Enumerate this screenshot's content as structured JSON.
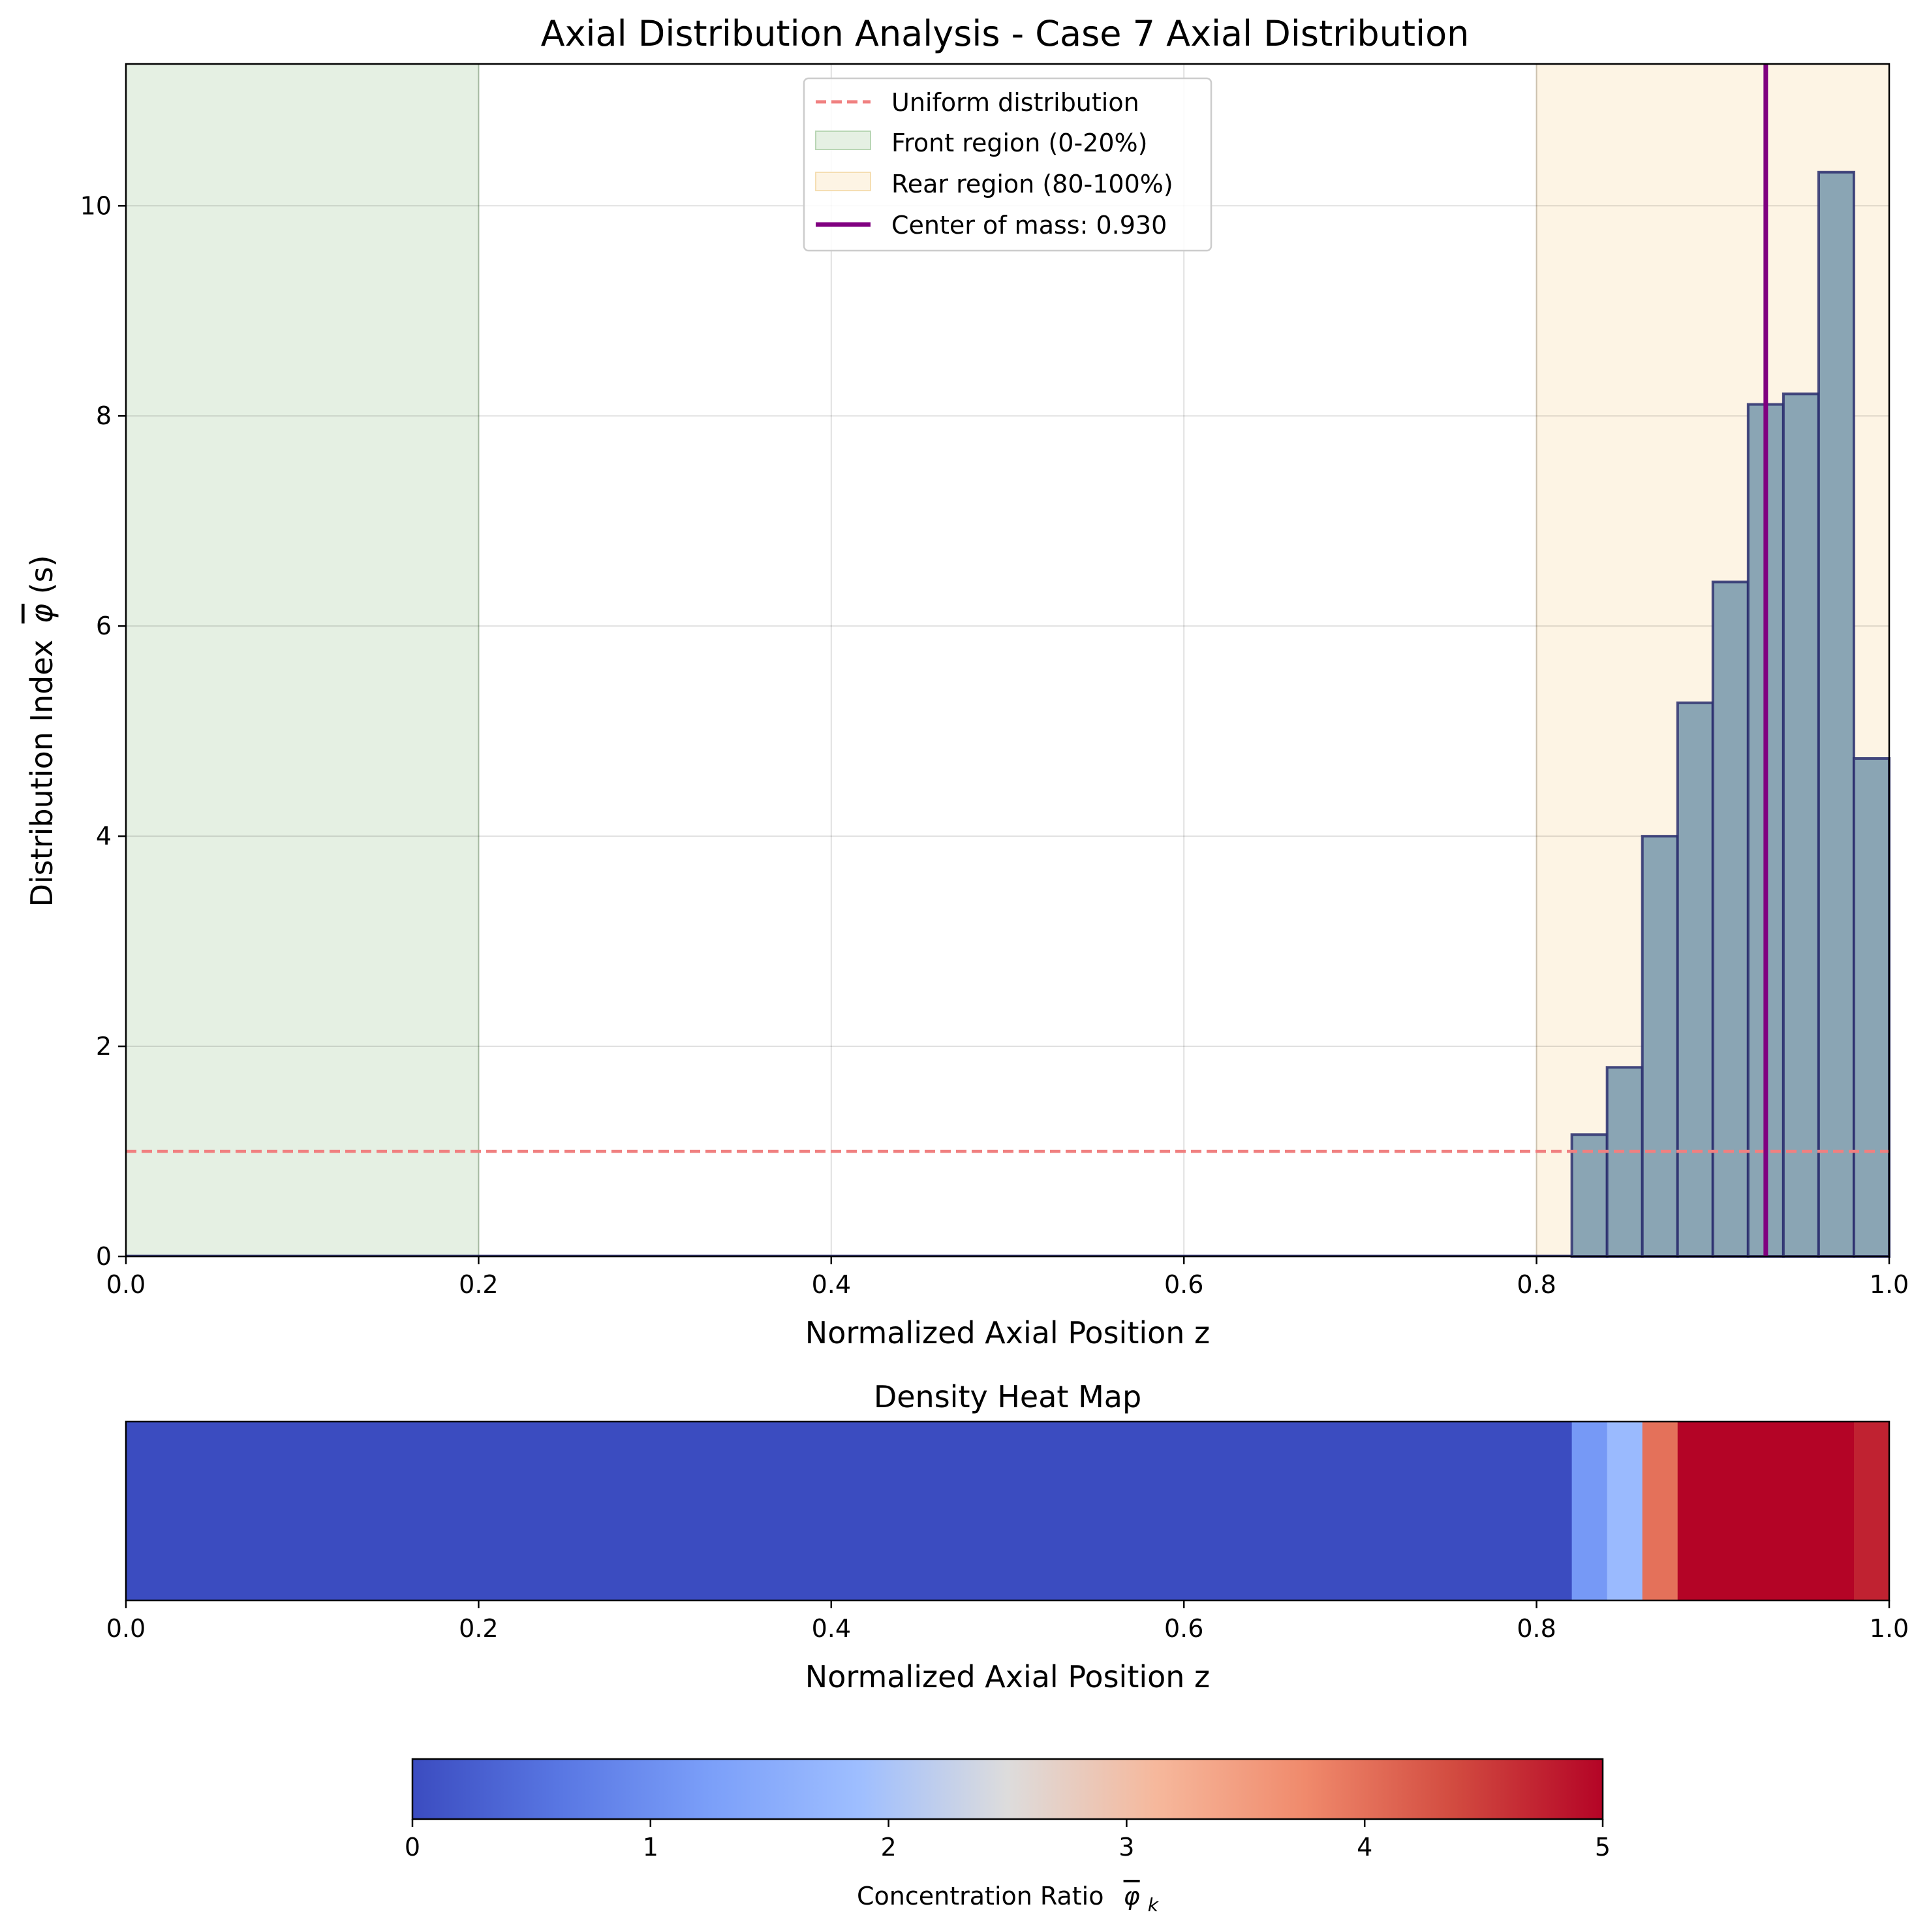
{
  "chart_data": [
    {
      "type": "bar",
      "title": "Axial Distribution Analysis - Case 7 Axial Distribution",
      "xlabel": "Normalized Axial Position z",
      "ylabel_text": "Distribution Index",
      "ylabel_symbol": "φ",
      "ylabel_arg": "(s)",
      "xlim": [
        0,
        1
      ],
      "ylim": [
        0,
        11.35
      ],
      "xticks": [
        "0.0",
        "0.2",
        "0.4",
        "0.6",
        "0.8",
        "1.0"
      ],
      "yticks": [
        "0",
        "2",
        "4",
        "6",
        "8",
        "10"
      ],
      "grid": true,
      "bin_width": 0.02,
      "bins": [
        {
          "x": 0.82,
          "value": 1.16
        },
        {
          "x": 0.84,
          "value": 1.8
        },
        {
          "x": 0.86,
          "value": 4.0
        },
        {
          "x": 0.88,
          "value": 5.27
        },
        {
          "x": 0.9,
          "value": 6.42
        },
        {
          "x": 0.92,
          "value": 8.11
        },
        {
          "x": 0.94,
          "value": 8.21
        },
        {
          "x": 0.96,
          "value": 10.32
        },
        {
          "x": 0.98,
          "value": 4.74
        }
      ],
      "uniform_level": 1.0,
      "front_region": [
        0,
        0.2
      ],
      "rear_region": [
        0.8,
        1.0
      ],
      "center_of_mass": 0.93,
      "legend": {
        "placement": "upper-center",
        "entries": [
          "Uniform distribution",
          "Front region (0-20%)",
          "Rear region (80-100%)",
          "Center of mass: 0.930"
        ]
      },
      "colors": {
        "bar_fill": "#8aa5b4",
        "bar_edge": "#2c2f6e",
        "uniform": "#f08080",
        "front": "#e5f0e3",
        "rear": "#fdf4e4",
        "center": "#800080"
      }
    },
    {
      "type": "heatmap",
      "title": "Density Heat Map",
      "xlabel": "Normalized Axial Position z",
      "xlim": [
        0,
        1
      ],
      "xticks": [
        "0.0",
        "0.2",
        "0.4",
        "0.6",
        "0.8",
        "1.0"
      ],
      "cells": [
        {
          "x0": 0.0,
          "x1": 0.82,
          "value": 0.0
        },
        {
          "x0": 0.82,
          "x1": 0.84,
          "value": 1.16
        },
        {
          "x0": 0.84,
          "x1": 0.86,
          "value": 1.8
        },
        {
          "x0": 0.86,
          "x1": 0.88,
          "value": 4.0
        },
        {
          "x0": 0.88,
          "x1": 0.98,
          "value": 5.0
        },
        {
          "x0": 0.98,
          "x1": 1.0,
          "value": 4.74
        }
      ],
      "colorbar": {
        "colormap": "coolwarm",
        "range": [
          0,
          5
        ],
        "ticks": [
          "0",
          "1",
          "2",
          "3",
          "4",
          "5"
        ],
        "label_text": "Concentration Ratio",
        "label_symbol": "φ",
        "label_sub": "k"
      }
    }
  ]
}
